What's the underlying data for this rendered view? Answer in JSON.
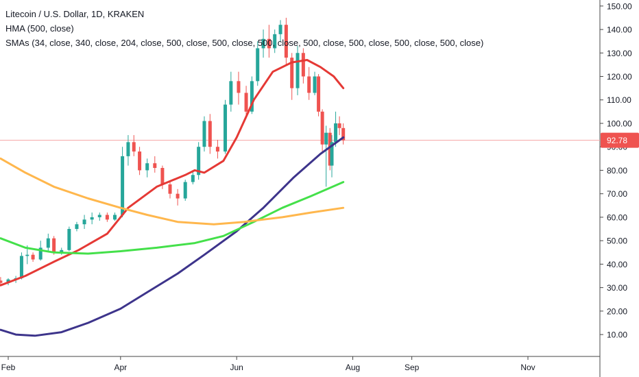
{
  "legend": {
    "title": "Litecoin / U.S. Dollar, 1D, KRAKEN",
    "hma": "HMA (500, close)",
    "smas": "SMAs (34, close, 340, close, 204, close, 500, close, 500, close, 500, close, 500, close, 500, close, 500, close, 500, close)"
  },
  "price_label": "92.78",
  "colors": {
    "up": "#26a69a",
    "down": "#ef5350",
    "ma_red": "#e53935",
    "ma_navy": "#3d348b",
    "ma_green": "#44e04a",
    "ma_orange": "#ffb74d",
    "price_line": "#f4a4a4",
    "axis_text": "#131722",
    "grid": "#444444"
  },
  "chart_data": {
    "type": "candlestick",
    "title": "Litecoin / U.S. Dollar, 1D, KRAKEN",
    "ylim": [
      0,
      155
    ],
    "y_ticks": [
      "10.00",
      "20.00",
      "30.00",
      "40.00",
      "50.00",
      "60.00",
      "70.00",
      "80.00",
      "90.00",
      "100.00",
      "110.00",
      "120.00",
      "130.00",
      "140.00",
      "150.00"
    ],
    "x_labels": [
      "Feb",
      "Apr",
      "Jun",
      "Aug",
      "Sep",
      "Nov"
    ],
    "x_label_dates": [
      "2019-02-01",
      "2019-04-01",
      "2019-06-01",
      "2019-08-01",
      "2019-09-01",
      "2019-11-01"
    ],
    "x_range": [
      "2019-01-28",
      "2019-12-15"
    ],
    "last_price": 92.78,
    "candles": [
      {
        "date": "2019-01-28",
        "o": 33.0,
        "h": 34.5,
        "l": 31.0,
        "c": 32.0
      },
      {
        "date": "2019-02-01",
        "o": 32.0,
        "h": 34.0,
        "l": 31.0,
        "c": 33.5
      },
      {
        "date": "2019-02-05",
        "o": 33.5,
        "h": 35.0,
        "l": 32.0,
        "c": 34.0
      },
      {
        "date": "2019-02-08",
        "o": 34.0,
        "h": 45.0,
        "l": 33.5,
        "c": 43.5
      },
      {
        "date": "2019-02-11",
        "o": 43.5,
        "h": 48.0,
        "l": 40.0,
        "c": 44.0
      },
      {
        "date": "2019-02-14",
        "o": 44.0,
        "h": 45.0,
        "l": 41.0,
        "c": 42.0
      },
      {
        "date": "2019-02-18",
        "o": 42.0,
        "h": 50.0,
        "l": 41.5,
        "c": 47.0
      },
      {
        "date": "2019-02-22",
        "o": 47.0,
        "h": 53.0,
        "l": 45.0,
        "c": 51.0
      },
      {
        "date": "2019-02-25",
        "o": 51.0,
        "h": 52.0,
        "l": 44.0,
        "c": 45.0
      },
      {
        "date": "2019-03-01",
        "o": 45.0,
        "h": 47.0,
        "l": 44.0,
        "c": 46.0
      },
      {
        "date": "2019-03-05",
        "o": 46.0,
        "h": 56.0,
        "l": 45.5,
        "c": 55.0
      },
      {
        "date": "2019-03-09",
        "o": 55.0,
        "h": 58.0,
        "l": 54.0,
        "c": 57.0
      },
      {
        "date": "2019-03-13",
        "o": 57.0,
        "h": 61.0,
        "l": 55.0,
        "c": 59.0
      },
      {
        "date": "2019-03-17",
        "o": 59.0,
        "h": 62.0,
        "l": 57.0,
        "c": 60.0
      },
      {
        "date": "2019-03-21",
        "o": 60.0,
        "h": 62.0,
        "l": 58.5,
        "c": 61.0
      },
      {
        "date": "2019-03-25",
        "o": 61.0,
        "h": 62.0,
        "l": 58.0,
        "c": 59.0
      },
      {
        "date": "2019-03-29",
        "o": 59.0,
        "h": 62.0,
        "l": 58.5,
        "c": 61.0
      },
      {
        "date": "2019-04-02",
        "o": 61.0,
        "h": 90.0,
        "l": 60.0,
        "c": 86.0
      },
      {
        "date": "2019-04-05",
        "o": 86.0,
        "h": 95.0,
        "l": 82.0,
        "c": 92.0
      },
      {
        "date": "2019-04-08",
        "o": 92.0,
        "h": 95.0,
        "l": 86.0,
        "c": 88.0
      },
      {
        "date": "2019-04-11",
        "o": 88.0,
        "h": 90.0,
        "l": 78.0,
        "c": 80.0
      },
      {
        "date": "2019-04-15",
        "o": 80.0,
        "h": 85.0,
        "l": 77.0,
        "c": 83.0
      },
      {
        "date": "2019-04-19",
        "o": 83.0,
        "h": 86.0,
        "l": 79.0,
        "c": 81.0
      },
      {
        "date": "2019-04-23",
        "o": 81.0,
        "h": 82.0,
        "l": 72.0,
        "c": 74.0
      },
      {
        "date": "2019-04-27",
        "o": 74.0,
        "h": 75.0,
        "l": 68.0,
        "c": 70.0
      },
      {
        "date": "2019-05-01",
        "o": 70.0,
        "h": 72.0,
        "l": 65.0,
        "c": 68.0
      },
      {
        "date": "2019-05-05",
        "o": 68.0,
        "h": 76.0,
        "l": 67.0,
        "c": 75.0
      },
      {
        "date": "2019-05-09",
        "o": 75.0,
        "h": 80.0,
        "l": 74.0,
        "c": 78.0
      },
      {
        "date": "2019-05-12",
        "o": 78.0,
        "h": 92.0,
        "l": 76.0,
        "c": 90.0
      },
      {
        "date": "2019-05-15",
        "o": 90.0,
        "h": 103.0,
        "l": 88.0,
        "c": 101.0
      },
      {
        "date": "2019-05-18",
        "o": 101.0,
        "h": 104.0,
        "l": 87.0,
        "c": 90.0
      },
      {
        "date": "2019-05-22",
        "o": 90.0,
        "h": 93.0,
        "l": 85.0,
        "c": 88.0
      },
      {
        "date": "2019-05-26",
        "o": 88.0,
        "h": 110.0,
        "l": 87.0,
        "c": 108.0
      },
      {
        "date": "2019-05-29",
        "o": 108.0,
        "h": 122.0,
        "l": 105.0,
        "c": 118.0
      },
      {
        "date": "2019-06-02",
        "o": 118.0,
        "h": 122.0,
        "l": 108.0,
        "c": 113.0
      },
      {
        "date": "2019-06-06",
        "o": 113.0,
        "h": 116.0,
        "l": 102.0,
        "c": 105.0
      },
      {
        "date": "2019-06-09",
        "o": 105.0,
        "h": 120.0,
        "l": 104.0,
        "c": 118.0
      },
      {
        "date": "2019-06-12",
        "o": 118.0,
        "h": 135.0,
        "l": 116.0,
        "c": 132.0
      },
      {
        "date": "2019-06-15",
        "o": 132.0,
        "h": 140.0,
        "l": 128.0,
        "c": 136.0
      },
      {
        "date": "2019-06-18",
        "o": 136.0,
        "h": 142.0,
        "l": 128.0,
        "c": 132.0
      },
      {
        "date": "2019-06-21",
        "o": 132.0,
        "h": 140.0,
        "l": 130.0,
        "c": 138.0
      },
      {
        "date": "2019-06-24",
        "o": 138.0,
        "h": 144.0,
        "l": 135.0,
        "c": 142.0
      },
      {
        "date": "2019-06-27",
        "o": 142.0,
        "h": 145.0,
        "l": 125.0,
        "c": 128.0
      },
      {
        "date": "2019-06-30",
        "o": 128.0,
        "h": 130.0,
        "l": 110.0,
        "c": 115.0
      },
      {
        "date": "2019-07-03",
        "o": 115.0,
        "h": 133.0,
        "l": 112.0,
        "c": 130.0
      },
      {
        "date": "2019-07-06",
        "o": 130.0,
        "h": 132.0,
        "l": 117.0,
        "c": 120.0
      },
      {
        "date": "2019-07-09",
        "o": 120.0,
        "h": 124.0,
        "l": 110.0,
        "c": 113.0
      },
      {
        "date": "2019-07-12",
        "o": 113.0,
        "h": 122.0,
        "l": 112.0,
        "c": 120.0
      },
      {
        "date": "2019-07-14",
        "o": 120.0,
        "h": 121.0,
        "l": 103.0,
        "c": 105.0
      },
      {
        "date": "2019-07-16",
        "o": 105.0,
        "h": 106.0,
        "l": 88.0,
        "c": 91.0
      },
      {
        "date": "2019-07-18",
        "o": 91.0,
        "h": 99.0,
        "l": 73.0,
        "c": 96.0
      },
      {
        "date": "2019-07-20",
        "o": 96.0,
        "h": 98.0,
        "l": 80.0,
        "c": 82.0
      },
      {
        "date": "2019-07-21",
        "o": 82.0,
        "h": 95.0,
        "l": 77.0,
        "c": 92.0
      },
      {
        "date": "2019-07-23",
        "o": 92.0,
        "h": 105.0,
        "l": 90.0,
        "c": 100.0
      },
      {
        "date": "2019-07-25",
        "o": 100.0,
        "h": 103.0,
        "l": 95.0,
        "c": 98.0
      },
      {
        "date": "2019-07-27",
        "o": 98.0,
        "h": 100.0,
        "l": 91.0,
        "c": 92.78
      }
    ],
    "series": [
      {
        "name": "SMA 34",
        "color_key": "ma_red",
        "points": [
          [
            "2019-01-28",
            31
          ],
          [
            "2019-02-10",
            35
          ],
          [
            "2019-02-25",
            41
          ],
          [
            "2019-03-10",
            46
          ],
          [
            "2019-03-25",
            53
          ],
          [
            "2019-04-05",
            64
          ],
          [
            "2019-04-20",
            73
          ],
          [
            "2019-05-05",
            78
          ],
          [
            "2019-05-10",
            80
          ],
          [
            "2019-05-15",
            79
          ],
          [
            "2019-05-25",
            84
          ],
          [
            "2019-06-01",
            94
          ],
          [
            "2019-06-10",
            110
          ],
          [
            "2019-06-20",
            122
          ],
          [
            "2019-06-30",
            126
          ],
          [
            "2019-07-08",
            127
          ],
          [
            "2019-07-15",
            124
          ],
          [
            "2019-07-22",
            120
          ],
          [
            "2019-07-27",
            115
          ]
        ]
      },
      {
        "name": "SMA 340",
        "color_key": "ma_navy",
        "points": [
          [
            "2019-01-28",
            12
          ],
          [
            "2019-02-05",
            10
          ],
          [
            "2019-02-15",
            9.5
          ],
          [
            "2019-03-01",
            11
          ],
          [
            "2019-03-15",
            15
          ],
          [
            "2019-04-01",
            21
          ],
          [
            "2019-04-15",
            28
          ],
          [
            "2019-05-01",
            36
          ],
          [
            "2019-05-15",
            44
          ],
          [
            "2019-06-01",
            54
          ],
          [
            "2019-06-15",
            64
          ],
          [
            "2019-07-01",
            77
          ],
          [
            "2019-07-15",
            87
          ],
          [
            "2019-07-27",
            94
          ]
        ]
      },
      {
        "name": "SMA 204",
        "color_key": "ma_green",
        "points": [
          [
            "2019-01-28",
            51
          ],
          [
            "2019-02-10",
            47
          ],
          [
            "2019-02-25",
            45
          ],
          [
            "2019-03-15",
            44.5
          ],
          [
            "2019-04-01",
            45.5
          ],
          [
            "2019-04-20",
            47
          ],
          [
            "2019-05-10",
            49
          ],
          [
            "2019-05-25",
            52
          ],
          [
            "2019-06-10",
            58
          ],
          [
            "2019-06-25",
            64
          ],
          [
            "2019-07-10",
            69
          ],
          [
            "2019-07-27",
            75
          ]
        ]
      },
      {
        "name": "SMA 500",
        "color_key": "ma_orange",
        "points": [
          [
            "2019-01-28",
            85
          ],
          [
            "2019-02-10",
            79
          ],
          [
            "2019-02-25",
            73
          ],
          [
            "2019-03-15",
            68
          ],
          [
            "2019-04-01",
            64
          ],
          [
            "2019-04-15",
            61
          ],
          [
            "2019-05-01",
            58
          ],
          [
            "2019-05-20",
            57
          ],
          [
            "2019-06-05",
            58
          ],
          [
            "2019-06-25",
            60
          ],
          [
            "2019-07-10",
            62
          ],
          [
            "2019-07-27",
            64
          ]
        ]
      }
    ]
  }
}
